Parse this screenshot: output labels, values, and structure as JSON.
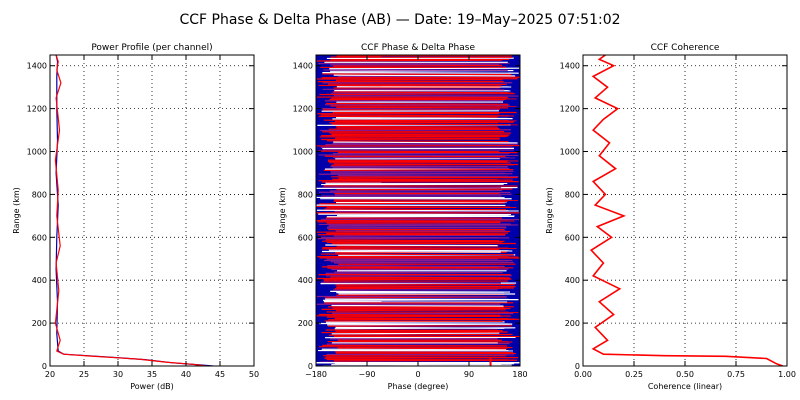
{
  "title": "CCF Phase & Delta Phase (AB) — Date: 19–May–2025 07:51:02",
  "colors": {
    "blue": "#0000aa",
    "red": "#ff0000",
    "white": "#ffffff"
  },
  "chart_data": [
    {
      "type": "line",
      "title": "Power Profile (per channel)",
      "xlabel": "Power (dB)",
      "ylabel": "Range (km)",
      "xlim": [
        20,
        50
      ],
      "ylim": [
        0,
        1450
      ],
      "xticks": [
        "20",
        "25",
        "30",
        "35",
        "40",
        "45",
        "50"
      ],
      "yticks": [
        "0",
        "200",
        "400",
        "600",
        "800",
        "1000",
        "1200",
        "1400"
      ],
      "grid": true,
      "series": [
        {
          "color": "#0000aa",
          "x": [
            44.0,
            42.0,
            38.0,
            34.0,
            27.0,
            22.0,
            21.2,
            21.0,
            21.1,
            20.9,
            21.0,
            21.2,
            20.9,
            21.1,
            21.0,
            21.0,
            21.1,
            20.9
          ],
          "y": [
            0,
            5,
            15,
            30,
            45,
            55,
            70,
            150,
            300,
            450,
            600,
            750,
            900,
            1050,
            1200,
            1350,
            1420,
            1450
          ]
        },
        {
          "color": "#ff0000",
          "x": [
            43.0,
            41.0,
            37.0,
            33.0,
            26.0,
            22.0,
            21.0,
            21.5,
            20.8,
            21.3,
            20.9,
            21.5,
            21.0,
            21.2,
            20.8,
            21.4,
            20.9,
            21.6,
            21.0,
            21.2,
            20.9
          ],
          "y": [
            0,
            8,
            18,
            32,
            46,
            55,
            70,
            120,
            200,
            350,
            480,
            560,
            700,
            820,
            960,
            1100,
            1250,
            1320,
            1380,
            1420,
            1450
          ]
        }
      ]
    },
    {
      "type": "line",
      "title": "CCF Phase & Delta Phase",
      "xlabel": "Phase (degree)",
      "ylabel": "Range (km)",
      "xlim": [
        -180,
        180
      ],
      "ylim": [
        0,
        1450
      ],
      "xticks": [
        "−180",
        "−90",
        "0",
        "90",
        "180"
      ],
      "yticks": [
        "0",
        "200",
        "400",
        "600",
        "800",
        "1000",
        "1200",
        "1400"
      ],
      "grid": true,
      "series": [
        {
          "name": "CCF Phase",
          "color": "#0000aa",
          "x": [
            -180,
            180
          ],
          "y": [
            0,
            1450
          ]
        },
        {
          "name": "Delta Phase",
          "color": "#ff0000",
          "x": [
            -180,
            180
          ],
          "y": [
            0,
            1450
          ]
        }
      ]
    },
    {
      "type": "line",
      "title": "CCF Coherence",
      "xlabel": "Coherence (linear)",
      "ylabel": "Range (km)",
      "xlim": [
        0,
        1
      ],
      "ylim": [
        0,
        1450
      ],
      "xticks": [
        "0.00",
        "0.25",
        "0.50",
        "0.75",
        "1.00"
      ],
      "yticks": [
        "0",
        "200",
        "400",
        "600",
        "800",
        "1000",
        "1200",
        "1400"
      ],
      "grid": true,
      "series": [
        {
          "color": "#ff0000",
          "x": [
            0.98,
            0.95,
            0.9,
            0.7,
            0.4,
            0.1,
            0.05,
            0.12,
            0.06,
            0.15,
            0.08,
            0.18,
            0.05,
            0.1,
            0.04,
            0.14,
            0.07,
            0.2,
            0.06,
            0.11,
            0.05,
            0.16,
            0.08,
            0.13,
            0.05,
            0.1,
            0.17,
            0.06,
            0.12,
            0.05,
            0.15,
            0.08,
            0.11
          ],
          "y": [
            0,
            10,
            35,
            45,
            48,
            55,
            80,
            120,
            180,
            240,
            300,
            360,
            420,
            480,
            540,
            600,
            650,
            700,
            750,
            800,
            860,
            920,
            980,
            1040,
            1100,
            1150,
            1200,
            1250,
            1300,
            1350,
            1400,
            1430,
            1450
          ]
        }
      ]
    }
  ]
}
